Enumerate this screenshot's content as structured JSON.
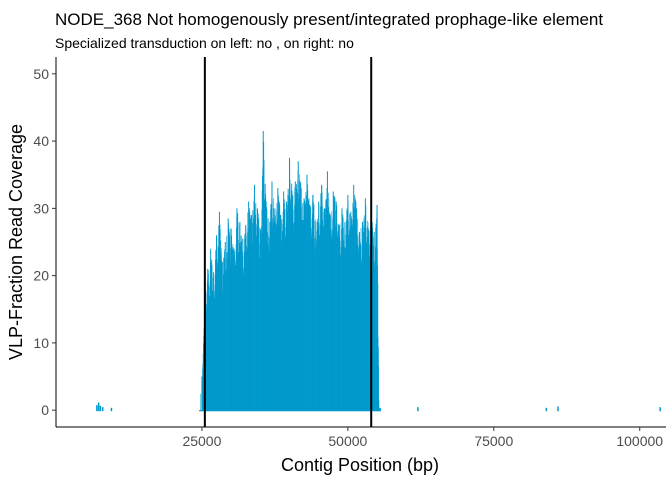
{
  "chart_data": {
    "type": "area",
    "title": "NODE_368 Not homogenously present/integrated prophage-like element",
    "subtitle": "Specialized transduction on left: no , on right: no",
    "xlabel": "Contig Position (bp)",
    "ylabel": "VLP-Fraction Read Coverage",
    "xlim": [
      0,
      104500
    ],
    "ylim": [
      -2.5,
      52.5
    ],
    "x_ticks": [
      25000,
      50000,
      75000,
      100000
    ],
    "x_tick_labels": [
      "25000",
      "50000",
      "75000",
      "100000"
    ],
    "y_ticks": [
      0,
      10,
      20,
      30,
      40,
      50
    ],
    "y_tick_labels": [
      "0",
      "10",
      "20",
      "30",
      "40",
      "50"
    ],
    "grid": false,
    "legend": "none",
    "series": [
      {
        "color": "#0099CC",
        "x": [
          7000,
          7300,
          7600,
          8000,
          9500,
          24500,
          25000,
          25500,
          26000,
          26500,
          27000,
          27500,
          28000,
          28500,
          29000,
          29500,
          30000,
          30500,
          31000,
          31500,
          32000,
          32500,
          33000,
          33500,
          34000,
          34500,
          35000,
          35500,
          36000,
          36500,
          37000,
          37500,
          38000,
          38500,
          39000,
          39500,
          40000,
          40500,
          41000,
          41500,
          42000,
          42500,
          43000,
          43500,
          44000,
          44500,
          45000,
          45500,
          46000,
          46500,
          47000,
          47500,
          48000,
          48500,
          49000,
          49500,
          50000,
          50500,
          51000,
          51500,
          52000,
          52500,
          53000,
          53500,
          54000,
          54500,
          55000,
          55300,
          55600,
          62000,
          84000,
          86000,
          103500
        ],
        "y": [
          0.6,
          1.0,
          0.5,
          0.3,
          0.2,
          0.0,
          5.0,
          18.0,
          21.0,
          24.0,
          20.5,
          26.0,
          29.5,
          22.0,
          25.0,
          28.5,
          27.0,
          24.0,
          30.0,
          28.0,
          25.5,
          27.5,
          31.0,
          29.0,
          33.5,
          30.0,
          27.0,
          41.5,
          31.0,
          28.0,
          34.0,
          30.0,
          33.0,
          29.0,
          32.5,
          31.0,
          37.5,
          32.0,
          34.0,
          37.0,
          33.0,
          31.5,
          35.0,
          30.5,
          32.0,
          28.0,
          31.0,
          33.5,
          30.0,
          35.5,
          29.0,
          32.5,
          31.0,
          27.5,
          30.0,
          28.0,
          32.0,
          29.5,
          33.5,
          30.0,
          26.5,
          28.0,
          31.5,
          27.0,
          30.0,
          26.5,
          30.5,
          1.5,
          0.3,
          0.3,
          0.2,
          0.4,
          0.3
        ]
      }
    ],
    "vlines": [
      25500,
      54000
    ],
    "vline_color": "#000000"
  }
}
